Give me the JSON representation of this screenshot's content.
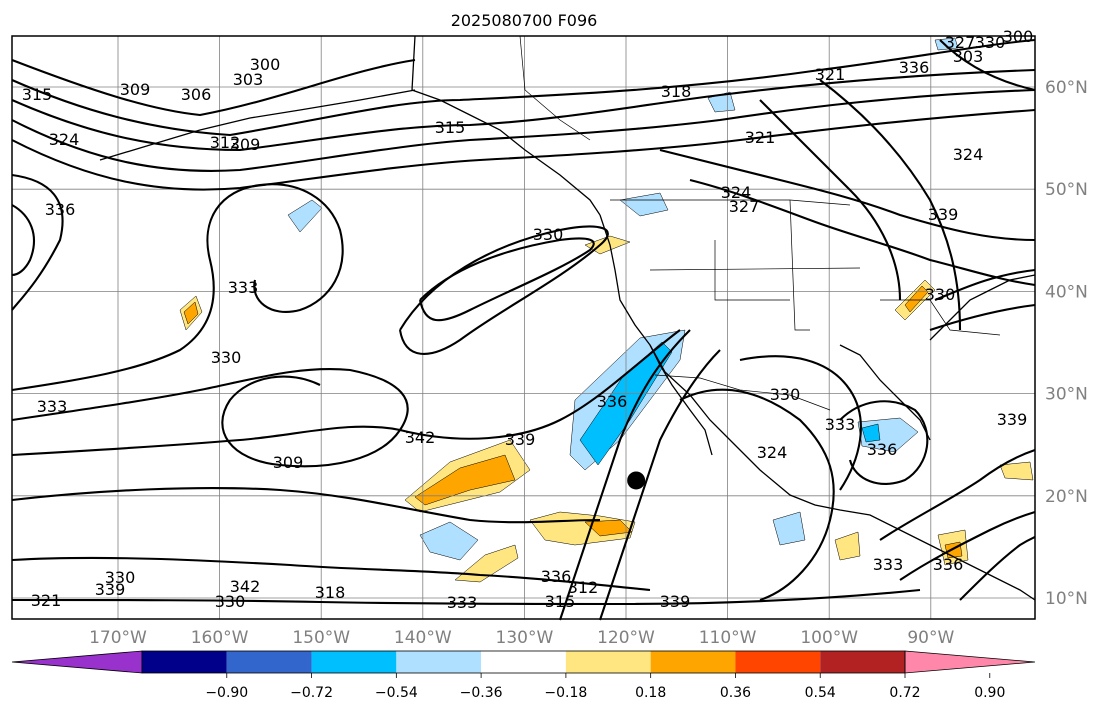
{
  "title": "2025080700 F096",
  "map": {
    "lat_labels": [
      "60°N",
      "50°N",
      "40°N",
      "30°N",
      "20°N",
      "10°N"
    ],
    "lon_labels": [
      "170°W",
      "160°W",
      "150°W",
      "140°W",
      "130°W",
      "120°W",
      "110°W",
      "100°W",
      "90°W"
    ],
    "gridline_color": "#808080",
    "contour_color": "#000000",
    "marker": {
      "lon": -119,
      "lat": 21.5,
      "color": "#000000"
    }
  },
  "contour_labels": [
    "300",
    "303",
    "309",
    "306",
    "309",
    "312",
    "315",
    "318",
    "321",
    "324",
    "327",
    "330",
    "333",
    "336",
    "339",
    "342",
    "309",
    "312",
    "315",
    "318",
    "321",
    "324",
    "330",
    "333",
    "336",
    "339",
    "330",
    "333",
    "336",
    "339",
    "330",
    "333",
    "336",
    "339",
    "342",
    "330",
    "333",
    "336",
    "339",
    "330",
    "321",
    "324",
    "327",
    "330",
    "336",
    "303",
    "300",
    "315",
    "324"
  ],
  "colorbar": {
    "ticks": [
      "−0.90",
      "−0.72",
      "−0.54",
      "−0.36",
      "−0.18",
      "0.18",
      "0.36",
      "0.54",
      "0.72",
      "0.90"
    ],
    "colors": [
      "#9932cc",
      "#00008b",
      "#3366cc",
      "#00bfff",
      "#b0e0ff",
      "#ffffff",
      "#ffe680",
      "#ffa500",
      "#ff4500",
      "#b22222",
      "#ff88aa"
    ],
    "extend": "both"
  }
}
